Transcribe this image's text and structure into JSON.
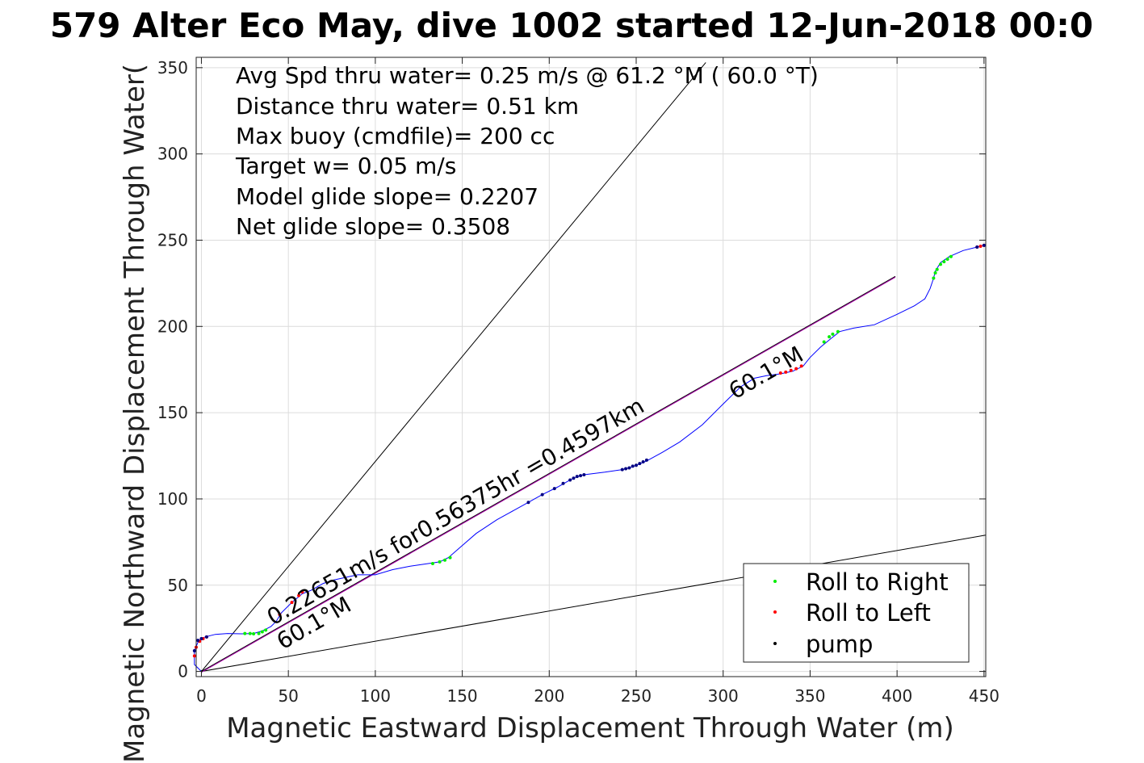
{
  "chart_data": {
    "type": "line",
    "title": "579 Alter Eco May, dive 1002 started 12-Jun-2018 00:0",
    "xlabel": "Magnetic Eastward Displacement Through Water (m)",
    "ylabel": "Magnetic Northward Displacement Through Water(",
    "xlim": [
      -3,
      451
    ],
    "ylim": [
      -3,
      356
    ],
    "xticks": [
      0,
      50,
      100,
      150,
      200,
      250,
      300,
      350,
      400,
      450
    ],
    "yticks": [
      0,
      50,
      100,
      150,
      200,
      250,
      300,
      350
    ],
    "xtick_labels": [
      "0",
      "50",
      "100",
      "150",
      "200",
      "250",
      "300",
      "350",
      "400",
      "450"
    ],
    "ytick_labels": [
      "0",
      "50",
      "100",
      "150",
      "200",
      "250",
      "300",
      "350"
    ],
    "grid": true,
    "legend_position": "bottom-right",
    "colors": {
      "track": "#0000ff",
      "roll_right": "#00ee00",
      "roll_left": "#ff0000",
      "pump": "#000080",
      "glide_line": "#aa00aa",
      "cone": "#000000"
    },
    "info_lines": [
      "Avg Spd thru water=  0.25 m/s @  61.2 °M ( 60.0 °T)",
      "Distance thru water=  0.51 km",
      "Max buoy (cmdfile)= 200 cc",
      "Target w= 0.05 m/s",
      "Model glide slope= 0.2207",
      "Net glide slope= 0.3508"
    ],
    "annotations": {
      "speed_label": "0.22651m/s for0.56375hr =0.4597km",
      "heading_label_start": "60.1°M",
      "heading_label_end": "60.1°M"
    },
    "legend": [
      {
        "label": "Roll to Right",
        "color": "#00ee00"
      },
      {
        "label": "Roll to Left",
        "color": "#ff0000"
      },
      {
        "label": "pump",
        "color": "#000000"
      }
    ],
    "series": [
      {
        "name": "track",
        "x": [
          0,
          -4,
          -4,
          -2,
          2,
          8,
          15,
          23,
          30,
          35,
          40,
          43,
          46,
          52,
          58,
          63,
          70,
          76,
          85,
          90,
          95,
          100,
          110,
          120,
          130,
          137,
          142,
          150,
          158,
          170,
          188,
          196,
          205,
          212,
          216,
          220,
          232,
          242,
          246,
          250,
          256,
          265,
          275,
          288,
          300,
          310,
          318,
          325,
          333,
          340,
          346,
          350,
          356,
          362,
          367,
          375,
          387,
          400,
          410,
          416,
          419,
          421,
          422,
          425,
          430,
          438,
          446,
          450
        ],
        "y": [
          0,
          4,
          12,
          17,
          20,
          21.5,
          22,
          21.8,
          22,
          23.5,
          26,
          29,
          34,
          40,
          45,
          47,
          51,
          53,
          55,
          56,
          56,
          56,
          59,
          61,
          62.5,
          63.5,
          66,
          73,
          80,
          88,
          98,
          102.5,
          107,
          111,
          113,
          114,
          115.5,
          117,
          118,
          119.5,
          122,
          127,
          133,
          143,
          155,
          165,
          170,
          171.5,
          172.5,
          174,
          177,
          182,
          188,
          193,
          197,
          199,
          201,
          207,
          212,
          216,
          222,
          228,
          232,
          237,
          240.5,
          244,
          246,
          247
        ]
      },
      {
        "name": "heading line",
        "x": [
          0,
          399
        ],
        "y": [
          0,
          229
        ]
      },
      {
        "name": "cone upper",
        "x": [
          0,
          290
        ],
        "y": [
          0,
          353
        ]
      },
      {
        "name": "cone lower",
        "x": [
          0,
          451
        ],
        "y": [
          0,
          79
        ]
      }
    ],
    "roll_right_points": {
      "x": [
        25,
        28,
        30,
        33,
        35,
        37,
        133,
        137,
        140,
        143,
        358,
        361,
        363,
        366,
        421,
        422,
        423,
        425,
        427,
        429,
        431
      ],
      "y": [
        22,
        22,
        21.8,
        22,
        23,
        24,
        62.5,
        63.5,
        64.5,
        66,
        191,
        194,
        195.5,
        197,
        228,
        231,
        233,
        236,
        237.5,
        239,
        240.5
      ]
    },
    "roll_left_points": {
      "x": [
        -4,
        -3,
        -1,
        1,
        3,
        45,
        52,
        56,
        58,
        333,
        336,
        339,
        342,
        345,
        446,
        448,
        450
      ],
      "y": [
        9,
        14,
        17.5,
        19,
        20,
        33,
        40,
        44,
        46,
        173,
        173.5,
        174.5,
        175.5,
        177,
        246,
        246.5,
        247
      ]
    },
    "pump_points": {
      "x": [
        -4,
        -2,
        0,
        3,
        188,
        196,
        203,
        208,
        212,
        214,
        216,
        218,
        220,
        242,
        244,
        246,
        248,
        250,
        252,
        254,
        256,
        446,
        450
      ],
      "y": [
        12,
        18,
        19,
        20,
        98,
        102.5,
        106,
        109,
        111,
        112,
        113,
        113.5,
        114,
        117,
        117.5,
        118,
        119,
        119.5,
        120.5,
        121.5,
        122.5,
        246,
        247
      ]
    }
  }
}
